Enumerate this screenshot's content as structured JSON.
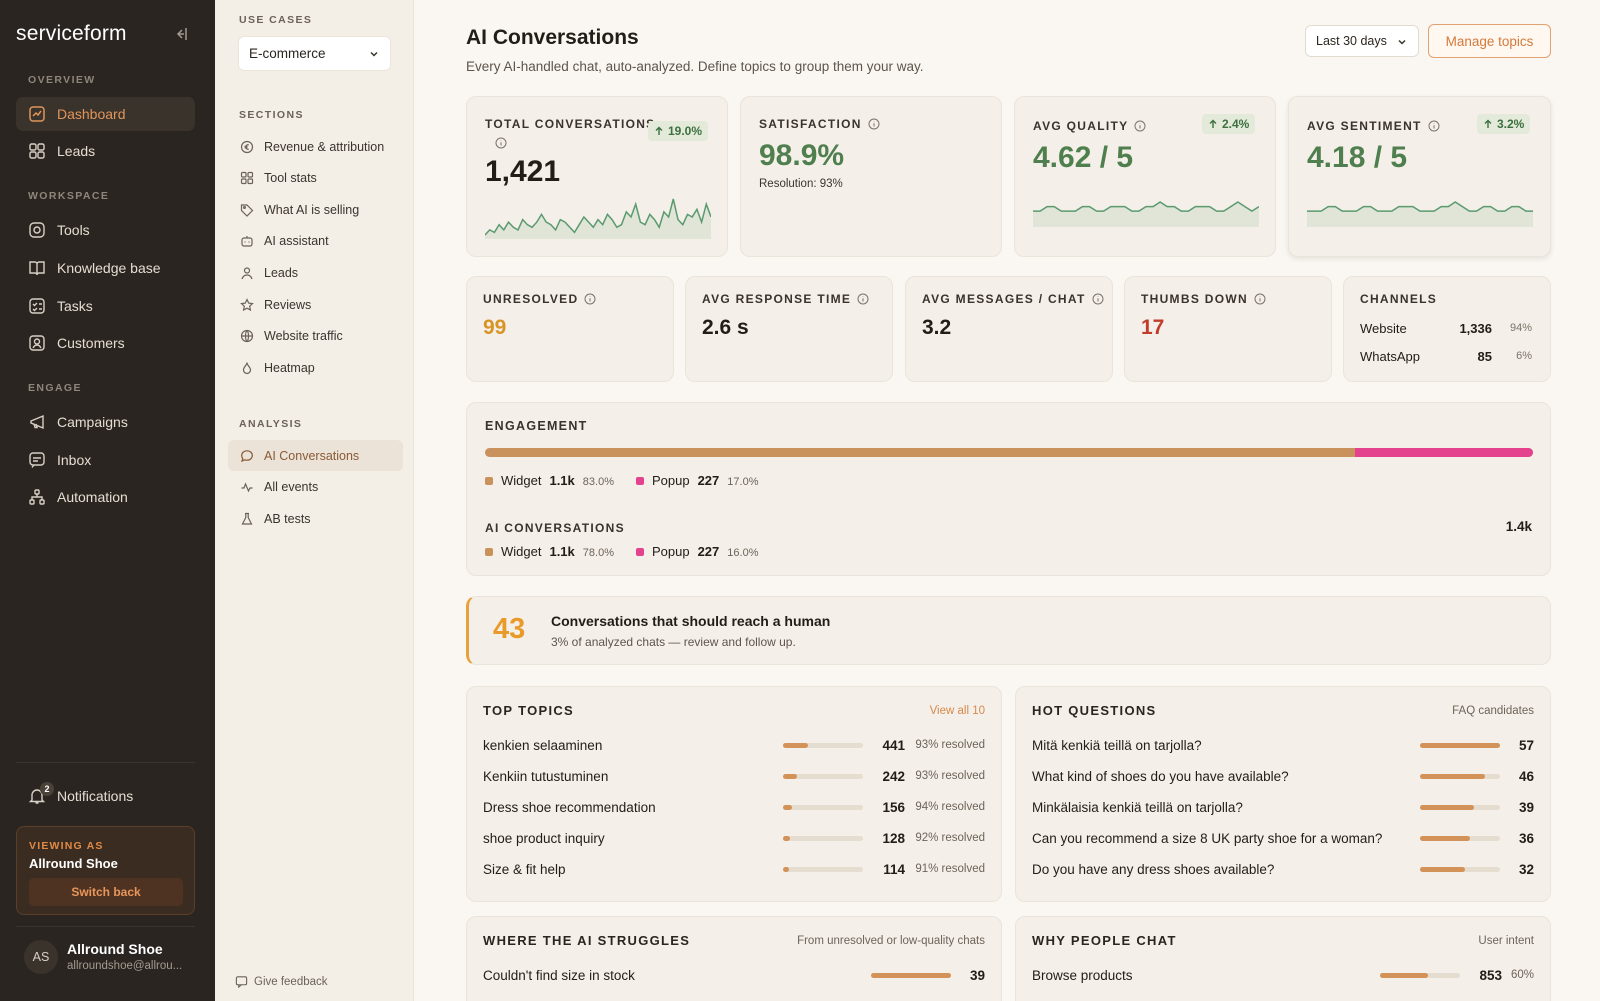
{
  "brand": {
    "logo": "serviceform"
  },
  "sidebar": {
    "sections": {
      "overview": "OVERVIEW",
      "workspace": "WORKSPACE",
      "engage": "ENGAGE"
    },
    "items": [
      {
        "label": "Dashboard",
        "icon": "chart-line-icon",
        "active": true
      },
      {
        "label": "Leads",
        "icon": "grid-icon"
      },
      {
        "label": "Tools",
        "icon": "tool-circle-icon"
      },
      {
        "label": "Knowledge base",
        "icon": "book-icon"
      },
      {
        "label": "Tasks",
        "icon": "checklist-icon"
      },
      {
        "label": "Customers",
        "icon": "user-square-icon"
      },
      {
        "label": "Campaigns",
        "icon": "megaphone-icon"
      },
      {
        "label": "Inbox",
        "icon": "message-icon"
      },
      {
        "label": "Automation",
        "icon": "flow-icon"
      }
    ],
    "notifications": {
      "label": "Notifications",
      "count": "2"
    },
    "viewing_as": {
      "label": "VIEWING AS",
      "name": "Allround Shoe",
      "button": "Switch back"
    },
    "user": {
      "initials": "AS",
      "name": "Allround Shoe",
      "email": "allroundshoe@allrou..."
    }
  },
  "subnav": {
    "use_cases_label": "USE CASES",
    "use_case_value": "E-commerce",
    "sections_label": "SECTIONS",
    "sections": [
      {
        "label": "Revenue & attribution",
        "icon": "currency-icon"
      },
      {
        "label": "Tool stats",
        "icon": "grid-icon"
      },
      {
        "label": "What AI is selling",
        "icon": "tag-icon"
      },
      {
        "label": "AI assistant",
        "icon": "robot-icon"
      },
      {
        "label": "Leads",
        "icon": "user-icon"
      },
      {
        "label": "Reviews",
        "icon": "star-icon"
      },
      {
        "label": "Website traffic",
        "icon": "globe-icon"
      },
      {
        "label": "Heatmap",
        "icon": "flame-icon"
      }
    ],
    "analysis_label": "ANALYSIS",
    "analysis": [
      {
        "label": "AI Conversations",
        "icon": "chat-bubble-icon",
        "active": true
      },
      {
        "label": "All events",
        "icon": "activity-icon"
      },
      {
        "label": "AB tests",
        "icon": "flask-icon"
      }
    ],
    "feedback": "Give feedback"
  },
  "header": {
    "title": "AI Conversations",
    "subtitle": "Every AI-handled chat, auto-analyzed. Define topics to group them your way.",
    "range": "Last 30 days",
    "manage": "Manage topics"
  },
  "kpis": {
    "total": {
      "label": "TOTAL CONVERSATIONS",
      "value": "1,421",
      "delta": "19.0%"
    },
    "satisfaction": {
      "label": "SATISFACTION",
      "value": "98.9%",
      "note": "Resolution: 93%"
    },
    "quality": {
      "label": "AVG QUALITY",
      "value": "4.62 / 5",
      "delta": "2.4%"
    },
    "sentiment": {
      "label": "AVG SENTIMENT",
      "value": "4.18 / 5",
      "delta": "3.2%"
    }
  },
  "stats": {
    "unresolved": {
      "label": "UNRESOLVED",
      "value": "99"
    },
    "response": {
      "label": "AVG RESPONSE TIME",
      "value": "2.6 s"
    },
    "messages": {
      "label": "AVG MESSAGES / CHAT",
      "value": "3.2"
    },
    "thumbs": {
      "label": "THUMBS DOWN",
      "value": "17"
    },
    "channels": {
      "label": "CHANNELS",
      "rows": [
        {
          "name": "Website",
          "value": "1,336",
          "pct": "94%"
        },
        {
          "name": "WhatsApp",
          "value": "85",
          "pct": "6%"
        }
      ]
    }
  },
  "engagement": {
    "label": "ENGAGEMENT",
    "widget_share": 0.83,
    "rows": [
      {
        "name": "Widget",
        "value": "1.1k",
        "pct": "83.0%"
      },
      {
        "name": "Popup",
        "value": "227",
        "pct": "17.0%"
      }
    ],
    "ai_label": "AI CONVERSATIONS",
    "ai_total": "1.4k",
    "ai_rows": [
      {
        "name": "Widget",
        "value": "1.1k",
        "pct": "78.0%"
      },
      {
        "name": "Popup",
        "value": "227",
        "pct": "16.0%"
      }
    ],
    "colors": {
      "widget": "#c9915c",
      "popup": "#e4418f"
    }
  },
  "human": {
    "count": "43",
    "title": "Conversations that should reach a human",
    "subtitle": "3% of analyzed chats — review and follow up."
  },
  "top_topics": {
    "title": "TOP TOPICS",
    "link": "View all 10",
    "rows": [
      {
        "name": "kenkien selaaminen",
        "count": "441",
        "resolved": "93% resolved",
        "level": 0.31
      },
      {
        "name": "Kenkiin tutustuminen",
        "count": "242",
        "resolved": "93% resolved",
        "level": 0.17
      },
      {
        "name": "Dress shoe recommendation",
        "count": "156",
        "resolved": "94% resolved",
        "level": 0.11
      },
      {
        "name": "shoe product inquiry",
        "count": "128",
        "resolved": "92% resolved",
        "level": 0.09
      },
      {
        "name": "Size & fit help",
        "count": "114",
        "resolved": "91% resolved",
        "level": 0.08
      }
    ]
  },
  "hot_questions": {
    "title": "HOT QUESTIONS",
    "side": "FAQ candidates",
    "rows": [
      {
        "name": "Mitä kenkiä teillä on tarjolla?",
        "count": "57",
        "level": 1.0
      },
      {
        "name": "What kind of shoes do you have available?",
        "count": "46",
        "level": 0.81
      },
      {
        "name": "Minkälaisia kenkiä teillä on tarjolla?",
        "count": "39",
        "level": 0.68
      },
      {
        "name": "Can you recommend a size 8 UK party shoe for a woman?",
        "count": "36",
        "level": 0.63
      },
      {
        "name": "Do you have any dress shoes available?",
        "count": "32",
        "level": 0.56
      }
    ]
  },
  "struggles": {
    "title": "WHERE THE AI STRUGGLES",
    "side": "From unresolved or low-quality chats",
    "rows": [
      {
        "name": "Couldn't find size in stock",
        "count": "39",
        "level": 1.0
      }
    ]
  },
  "why_chat": {
    "title": "WHY PEOPLE CHAT",
    "side": "User intent",
    "rows": [
      {
        "name": "Browse products",
        "count": "853",
        "pct": "60%",
        "level": 0.6
      }
    ]
  },
  "sparklines": {
    "total": [
      10,
      12,
      11,
      14,
      12,
      15,
      13,
      12,
      16,
      14,
      13,
      15,
      18,
      15,
      14,
      12,
      16,
      15,
      13,
      11,
      14,
      17,
      15,
      13,
      16,
      14,
      18,
      16,
      13,
      14,
      19,
      17,
      22,
      15,
      14,
      18,
      16,
      13,
      19,
      17,
      24,
      16,
      14,
      18,
      17,
      20,
      15,
      22,
      17
    ],
    "quality": [
      10,
      10,
      11,
      11,
      10,
      10,
      10,
      11,
      11,
      10,
      10,
      11,
      11,
      11,
      10,
      10,
      11,
      11,
      12,
      11,
      11,
      10,
      10,
      11,
      11,
      11,
      10,
      10,
      11,
      12,
      11,
      10,
      11
    ],
    "sentiment": [
      10,
      10,
      10,
      11,
      11,
      10,
      10,
      10,
      11,
      11,
      10,
      10,
      10,
      11,
      11,
      11,
      10,
      10,
      10,
      11,
      11,
      12,
      11,
      10,
      10,
      11,
      11,
      10,
      10,
      11,
      11,
      10,
      10
    ]
  },
  "colors": {
    "accent": "#d4793a",
    "spark_green": "#5a9a6f",
    "good": "#3c7040",
    "warn": "#d69524",
    "bad": "#c03d2c"
  }
}
